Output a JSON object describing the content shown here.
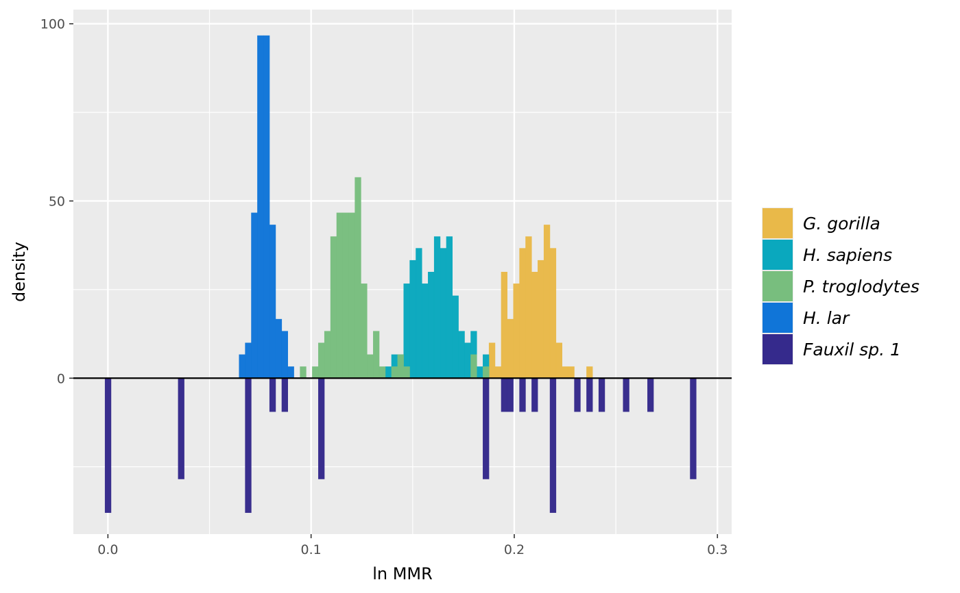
{
  "chart_data": {
    "type": "bar",
    "chart_kind": "back-to-back histogram",
    "title": "",
    "xlabel": "ln MMR",
    "ylabel": "density",
    "xlim": [
      -0.017,
      0.307
    ],
    "ylim": [
      -44,
      104
    ],
    "xticks": [
      0.0,
      0.1,
      0.2,
      0.3
    ],
    "xtick_labels": [
      "0.0",
      "0.1",
      "0.2",
      "0.3"
    ],
    "yticks": [
      0,
      50,
      100
    ],
    "ytick_labels": [
      "0",
      "50",
      "100"
    ],
    "grid": true,
    "legend_position": "right",
    "bin_width": 0.003,
    "series": [
      {
        "name": "G. gorilla",
        "color": "#E9B949",
        "bins": [
          {
            "x0": 0.1785,
            "value": 3.3
          },
          {
            "x0": 0.1875,
            "value": 10
          },
          {
            "x0": 0.1905,
            "value": 3.3
          },
          {
            "x0": 0.1935,
            "value": 30
          },
          {
            "x0": 0.1965,
            "value": 16.7
          },
          {
            "x0": 0.1995,
            "value": 26.7
          },
          {
            "x0": 0.2025,
            "value": 36.7
          },
          {
            "x0": 0.2055,
            "value": 40
          },
          {
            "x0": 0.2085,
            "value": 30
          },
          {
            "x0": 0.2115,
            "value": 33.3
          },
          {
            "x0": 0.2145,
            "value": 43.3
          },
          {
            "x0": 0.2175,
            "value": 36.7
          },
          {
            "x0": 0.2205,
            "value": 10
          },
          {
            "x0": 0.2235,
            "value": 3.3
          },
          {
            "x0": 0.2265,
            "value": 3.3
          },
          {
            "x0": 0.2355,
            "value": 3.3
          }
        ]
      },
      {
        "name": "H. sapiens",
        "color": "#0AA8BE",
        "bins": [
          {
            "x0": 0.1365,
            "value": 3.3
          },
          {
            "x0": 0.1395,
            "value": 6.7
          },
          {
            "x0": 0.1425,
            "value": 6.7
          },
          {
            "x0": 0.1455,
            "value": 26.7
          },
          {
            "x0": 0.1485,
            "value": 33.3
          },
          {
            "x0": 0.1515,
            "value": 36.7
          },
          {
            "x0": 0.1545,
            "value": 26.7
          },
          {
            "x0": 0.1575,
            "value": 30
          },
          {
            "x0": 0.1605,
            "value": 40
          },
          {
            "x0": 0.1635,
            "value": 36.7
          },
          {
            "x0": 0.1665,
            "value": 40
          },
          {
            "x0": 0.1695,
            "value": 23.3
          },
          {
            "x0": 0.1725,
            "value": 13.3
          },
          {
            "x0": 0.1755,
            "value": 10
          },
          {
            "x0": 0.1785,
            "value": 13.3
          },
          {
            "x0": 0.1815,
            "value": 3.3
          },
          {
            "x0": 0.1845,
            "value": 6.7
          }
        ]
      },
      {
        "name": "P. troglodytes",
        "color": "#78BE7E",
        "bins": [
          {
            "x0": 0.0945,
            "value": 3.3
          },
          {
            "x0": 0.1005,
            "value": 3.3
          },
          {
            "x0": 0.1035,
            "value": 10
          },
          {
            "x0": 0.1065,
            "value": 13.3
          },
          {
            "x0": 0.1095,
            "value": 40
          },
          {
            "x0": 0.1125,
            "value": 46.7
          },
          {
            "x0": 0.1155,
            "value": 46.7
          },
          {
            "x0": 0.1185,
            "value": 46.7
          },
          {
            "x0": 0.1215,
            "value": 56.7
          },
          {
            "x0": 0.1245,
            "value": 26.7
          },
          {
            "x0": 0.1275,
            "value": 6.7
          },
          {
            "x0": 0.1305,
            "value": 13.3
          },
          {
            "x0": 0.1335,
            "value": 3.3
          },
          {
            "x0": 0.1395,
            "value": 3.3
          },
          {
            "x0": 0.1425,
            "value": 6.7
          },
          {
            "x0": 0.1455,
            "value": 3.3
          },
          {
            "x0": 0.1785,
            "value": 6.7
          },
          {
            "x0": 0.1845,
            "value": 3.3
          }
        ]
      },
      {
        "name": "H. lar",
        "color": "#1075D8",
        "bins": [
          {
            "x0": 0.0645,
            "value": 6.7
          },
          {
            "x0": 0.0675,
            "value": 10
          },
          {
            "x0": 0.0705,
            "value": 46.7
          },
          {
            "x0": 0.0735,
            "value": 96.7
          },
          {
            "x0": 0.0765,
            "value": 96.7
          },
          {
            "x0": 0.0795,
            "value": 43.3
          },
          {
            "x0": 0.0825,
            "value": 16.7
          },
          {
            "x0": 0.0855,
            "value": 13.3
          },
          {
            "x0": 0.0885,
            "value": 3.3
          }
        ]
      },
      {
        "name": "Fauxil sp. 1",
        "color": "#352A8C",
        "bins": [
          {
            "x0": -0.0015,
            "value": -38
          },
          {
            "x0": 0.0345,
            "value": -28.5
          },
          {
            "x0": 0.0675,
            "value": -38
          },
          {
            "x0": 0.0795,
            "value": -9.5
          },
          {
            "x0": 0.0855,
            "value": -9.5
          },
          {
            "x0": 0.1035,
            "value": -28.5
          },
          {
            "x0": 0.1845,
            "value": -28.5
          },
          {
            "x0": 0.1935,
            "value": -9.5
          },
          {
            "x0": 0.1965,
            "value": -9.5
          },
          {
            "x0": 0.2025,
            "value": -9.5
          },
          {
            "x0": 0.2085,
            "value": -9.5
          },
          {
            "x0": 0.2175,
            "value": -38
          },
          {
            "x0": 0.2295,
            "value": -9.5
          },
          {
            "x0": 0.2355,
            "value": -9.5
          },
          {
            "x0": 0.2415,
            "value": -9.5
          },
          {
            "x0": 0.2535,
            "value": -9.5
          },
          {
            "x0": 0.2655,
            "value": -9.5
          },
          {
            "x0": 0.2865,
            "value": -28.5
          }
        ]
      }
    ]
  }
}
